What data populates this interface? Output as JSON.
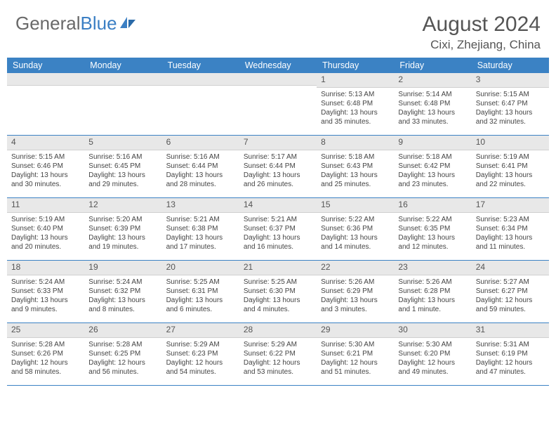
{
  "brand": {
    "left": "General",
    "right": "Blue"
  },
  "title": "August 2024",
  "location": "Cixi, Zhejiang, China",
  "colors": {
    "header_bg": "#3b82c4",
    "header_text": "#ffffff",
    "daynum_bg": "#e8e8e8",
    "border": "#3b82c4",
    "text": "#444444",
    "brand_gray": "#696969",
    "brand_blue": "#3b7fc4"
  },
  "day_names": [
    "Sunday",
    "Monday",
    "Tuesday",
    "Wednesday",
    "Thursday",
    "Friday",
    "Saturday"
  ],
  "weeks": [
    [
      {
        "n": "",
        "sr": "",
        "ss": "",
        "dl": ""
      },
      {
        "n": "",
        "sr": "",
        "ss": "",
        "dl": ""
      },
      {
        "n": "",
        "sr": "",
        "ss": "",
        "dl": ""
      },
      {
        "n": "",
        "sr": "",
        "ss": "",
        "dl": ""
      },
      {
        "n": "1",
        "sr": "Sunrise: 5:13 AM",
        "ss": "Sunset: 6:48 PM",
        "dl": "Daylight: 13 hours and 35 minutes."
      },
      {
        "n": "2",
        "sr": "Sunrise: 5:14 AM",
        "ss": "Sunset: 6:48 PM",
        "dl": "Daylight: 13 hours and 33 minutes."
      },
      {
        "n": "3",
        "sr": "Sunrise: 5:15 AM",
        "ss": "Sunset: 6:47 PM",
        "dl": "Daylight: 13 hours and 32 minutes."
      }
    ],
    [
      {
        "n": "4",
        "sr": "Sunrise: 5:15 AM",
        "ss": "Sunset: 6:46 PM",
        "dl": "Daylight: 13 hours and 30 minutes."
      },
      {
        "n": "5",
        "sr": "Sunrise: 5:16 AM",
        "ss": "Sunset: 6:45 PM",
        "dl": "Daylight: 13 hours and 29 minutes."
      },
      {
        "n": "6",
        "sr": "Sunrise: 5:16 AM",
        "ss": "Sunset: 6:44 PM",
        "dl": "Daylight: 13 hours and 28 minutes."
      },
      {
        "n": "7",
        "sr": "Sunrise: 5:17 AM",
        "ss": "Sunset: 6:44 PM",
        "dl": "Daylight: 13 hours and 26 minutes."
      },
      {
        "n": "8",
        "sr": "Sunrise: 5:18 AM",
        "ss": "Sunset: 6:43 PM",
        "dl": "Daylight: 13 hours and 25 minutes."
      },
      {
        "n": "9",
        "sr": "Sunrise: 5:18 AM",
        "ss": "Sunset: 6:42 PM",
        "dl": "Daylight: 13 hours and 23 minutes."
      },
      {
        "n": "10",
        "sr": "Sunrise: 5:19 AM",
        "ss": "Sunset: 6:41 PM",
        "dl": "Daylight: 13 hours and 22 minutes."
      }
    ],
    [
      {
        "n": "11",
        "sr": "Sunrise: 5:19 AM",
        "ss": "Sunset: 6:40 PM",
        "dl": "Daylight: 13 hours and 20 minutes."
      },
      {
        "n": "12",
        "sr": "Sunrise: 5:20 AM",
        "ss": "Sunset: 6:39 PM",
        "dl": "Daylight: 13 hours and 19 minutes."
      },
      {
        "n": "13",
        "sr": "Sunrise: 5:21 AM",
        "ss": "Sunset: 6:38 PM",
        "dl": "Daylight: 13 hours and 17 minutes."
      },
      {
        "n": "14",
        "sr": "Sunrise: 5:21 AM",
        "ss": "Sunset: 6:37 PM",
        "dl": "Daylight: 13 hours and 16 minutes."
      },
      {
        "n": "15",
        "sr": "Sunrise: 5:22 AM",
        "ss": "Sunset: 6:36 PM",
        "dl": "Daylight: 13 hours and 14 minutes."
      },
      {
        "n": "16",
        "sr": "Sunrise: 5:22 AM",
        "ss": "Sunset: 6:35 PM",
        "dl": "Daylight: 13 hours and 12 minutes."
      },
      {
        "n": "17",
        "sr": "Sunrise: 5:23 AM",
        "ss": "Sunset: 6:34 PM",
        "dl": "Daylight: 13 hours and 11 minutes."
      }
    ],
    [
      {
        "n": "18",
        "sr": "Sunrise: 5:24 AM",
        "ss": "Sunset: 6:33 PM",
        "dl": "Daylight: 13 hours and 9 minutes."
      },
      {
        "n": "19",
        "sr": "Sunrise: 5:24 AM",
        "ss": "Sunset: 6:32 PM",
        "dl": "Daylight: 13 hours and 8 minutes."
      },
      {
        "n": "20",
        "sr": "Sunrise: 5:25 AM",
        "ss": "Sunset: 6:31 PM",
        "dl": "Daylight: 13 hours and 6 minutes."
      },
      {
        "n": "21",
        "sr": "Sunrise: 5:25 AM",
        "ss": "Sunset: 6:30 PM",
        "dl": "Daylight: 13 hours and 4 minutes."
      },
      {
        "n": "22",
        "sr": "Sunrise: 5:26 AM",
        "ss": "Sunset: 6:29 PM",
        "dl": "Daylight: 13 hours and 3 minutes."
      },
      {
        "n": "23",
        "sr": "Sunrise: 5:26 AM",
        "ss": "Sunset: 6:28 PM",
        "dl": "Daylight: 13 hours and 1 minute."
      },
      {
        "n": "24",
        "sr": "Sunrise: 5:27 AM",
        "ss": "Sunset: 6:27 PM",
        "dl": "Daylight: 12 hours and 59 minutes."
      }
    ],
    [
      {
        "n": "25",
        "sr": "Sunrise: 5:28 AM",
        "ss": "Sunset: 6:26 PM",
        "dl": "Daylight: 12 hours and 58 minutes."
      },
      {
        "n": "26",
        "sr": "Sunrise: 5:28 AM",
        "ss": "Sunset: 6:25 PM",
        "dl": "Daylight: 12 hours and 56 minutes."
      },
      {
        "n": "27",
        "sr": "Sunrise: 5:29 AM",
        "ss": "Sunset: 6:23 PM",
        "dl": "Daylight: 12 hours and 54 minutes."
      },
      {
        "n": "28",
        "sr": "Sunrise: 5:29 AM",
        "ss": "Sunset: 6:22 PM",
        "dl": "Daylight: 12 hours and 53 minutes."
      },
      {
        "n": "29",
        "sr": "Sunrise: 5:30 AM",
        "ss": "Sunset: 6:21 PM",
        "dl": "Daylight: 12 hours and 51 minutes."
      },
      {
        "n": "30",
        "sr": "Sunrise: 5:30 AM",
        "ss": "Sunset: 6:20 PM",
        "dl": "Daylight: 12 hours and 49 minutes."
      },
      {
        "n": "31",
        "sr": "Sunrise: 5:31 AM",
        "ss": "Sunset: 6:19 PM",
        "dl": "Daylight: 12 hours and 47 minutes."
      }
    ]
  ]
}
